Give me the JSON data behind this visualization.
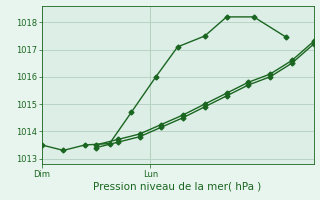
{
  "xlabel": "Pression niveau de la mer( hPa )",
  "background_color": "#e8f5ee",
  "plot_bg_color": "#dceee6",
  "grid_color": "#b8d4c4",
  "line_color": "#1a6620",
  "ylim": [
    1012.8,
    1018.6
  ],
  "yticks": [
    1013,
    1014,
    1015,
    1016,
    1017,
    1018
  ],
  "xlim": [
    0,
    10
  ],
  "day_positions": [
    0,
    4.0
  ],
  "day_labels": [
    "Dim",
    "Lun"
  ],
  "series1_x": [
    0,
    0.8,
    1.6,
    2.5,
    3.3,
    4.2,
    5.0,
    6.0,
    6.8,
    7.8,
    9.0
  ],
  "series1_y": [
    1013.5,
    1013.3,
    1013.5,
    1013.55,
    1014.7,
    1016.0,
    1017.1,
    1017.5,
    1018.2,
    1018.2,
    1017.45
  ],
  "series2_x": [
    2.0,
    2.8,
    3.6,
    4.4,
    5.2,
    6.0,
    6.8,
    7.6,
    8.4,
    9.2,
    10.0
  ],
  "series2_y": [
    1013.4,
    1013.6,
    1013.8,
    1014.15,
    1014.5,
    1014.9,
    1015.3,
    1015.7,
    1016.0,
    1016.5,
    1017.2
  ],
  "series3_x": [
    2.0,
    2.8,
    3.6,
    4.4,
    5.2,
    6.0,
    6.8,
    7.6,
    8.4,
    9.2,
    10.0
  ],
  "series3_y": [
    1013.5,
    1013.7,
    1013.9,
    1014.25,
    1014.6,
    1015.0,
    1015.4,
    1015.8,
    1016.1,
    1016.6,
    1017.3
  ],
  "label_fontsize": 6,
  "tick_fontsize": 6,
  "xlabel_fontsize": 7.5
}
